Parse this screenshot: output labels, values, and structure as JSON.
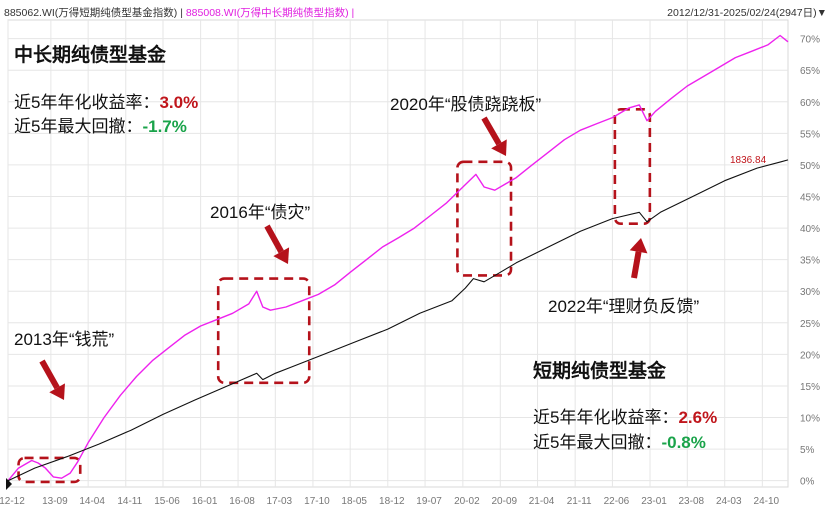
{
  "header": {
    "series_a": "885062.WI(万得短期纯债型基金指数)",
    "separator": " | ",
    "series_b": "885008.WI(万得中长期纯债型指数)",
    "separator_end": " |",
    "date_range": "2012/12/31-2025/02/24(2947日)"
  },
  "colors": {
    "long_term": "#ee22ee",
    "short_term": "#111111",
    "accent_red": "#c0161c",
    "accent_green": "#1aa34a",
    "dashed_box": "#b5121b"
  },
  "labels": {
    "long_title": "中长期纯债型基金",
    "long_return_label": "近5年年化收益率：",
    "long_return_value": "3.0%",
    "long_dd_label": "近5年最大回撤：",
    "long_dd_value": "-1.7%",
    "short_title": "短期纯债型基金",
    "short_return_label": "近5年年化收益率：",
    "short_return_value": "2.6%",
    "short_dd_label": "近5年最大回撤：",
    "short_dd_value": "-0.8%",
    "event_2013": "2013年“钱荒”",
    "event_2016": "2016年“债灾”",
    "event_2020": "2020年“股债跷跷板”",
    "event_2022": "2022年“理财负反馈”"
  },
  "chart_data": {
    "type": "line",
    "ylim": [
      -1,
      72
    ],
    "ytick_values": [
      0,
      5,
      10,
      15,
      20,
      25,
      30,
      35,
      40,
      45,
      50,
      55,
      60,
      65,
      70
    ],
    "yticks": [
      "0%",
      "5%",
      "10%",
      "15%",
      "20%",
      "25%",
      "30%",
      "35%",
      "40%",
      "45%",
      "50%",
      "55%",
      "60%",
      "65%",
      "70%"
    ],
    "xlim": [
      "2012-12-31",
      "2025-02-24"
    ],
    "xticks": [
      "12-12",
      "13-09",
      "14-04",
      "14-11",
      "15-06",
      "16-01",
      "16-08",
      "17-03",
      "17-10",
      "18-05",
      "18-12",
      "19-07",
      "20-02",
      "20-09",
      "21-04",
      "21-11",
      "22-06",
      "23-01",
      "23-08",
      "24-03",
      "24-10"
    ],
    "xtick_dates": [
      "2012-12-31",
      "2013-09-01",
      "2014-04-01",
      "2014-11-01",
      "2015-06-01",
      "2016-01-01",
      "2016-08-01",
      "2017-03-01",
      "2017-10-01",
      "2018-05-01",
      "2018-12-01",
      "2019-07-01",
      "2020-02-01",
      "2020-09-01",
      "2021-04-01",
      "2021-11-01",
      "2022-06-01",
      "2023-01-01",
      "2023-08-01",
      "2024-03-01",
      "2024-10-01"
    ],
    "last_value_label": "1836.84",
    "series": [
      {
        "name": "885008.WI(万得中长期纯债型指数)",
        "x": [
          "2012-12-31",
          "2013-03-01",
          "2013-05-15",
          "2013-06-20",
          "2013-08-01",
          "2013-09-15",
          "2013-11-01",
          "2013-12-20",
          "2014-02-01",
          "2014-04-01",
          "2014-07-01",
          "2014-10-01",
          "2015-01-01",
          "2015-04-01",
          "2015-07-01",
          "2015-10-01",
          "2016-01-01",
          "2016-04-01",
          "2016-07-01",
          "2016-10-01",
          "2016-11-15",
          "2016-12-20",
          "2017-02-01",
          "2017-05-01",
          "2017-08-01",
          "2017-11-01",
          "2018-02-01",
          "2018-05-01",
          "2018-08-01",
          "2018-11-01",
          "2019-02-01",
          "2019-05-01",
          "2019-08-01",
          "2019-11-01",
          "2020-02-01",
          "2020-04-15",
          "2020-06-01",
          "2020-08-01",
          "2020-10-01",
          "2020-12-01",
          "2021-03-01",
          "2021-06-01",
          "2021-09-01",
          "2021-12-01",
          "2022-03-01",
          "2022-06-01",
          "2022-09-01",
          "2022-11-01",
          "2022-12-15",
          "2023-02-01",
          "2023-05-01",
          "2023-08-01",
          "2023-11-01",
          "2024-02-01",
          "2024-05-01",
          "2024-08-01",
          "2024-11-01",
          "2025-01-10",
          "2025-02-24"
        ],
        "y": [
          0.0,
          2.0,
          3.2,
          2.8,
          2.0,
          0.6,
          0.4,
          1.2,
          3.0,
          6.0,
          10.0,
          13.5,
          16.5,
          19.0,
          21.0,
          23.0,
          24.5,
          25.5,
          26.5,
          28.0,
          30.0,
          27.5,
          27.0,
          27.5,
          28.5,
          29.5,
          31.0,
          33.0,
          35.0,
          37.0,
          38.5,
          40.0,
          42.0,
          44.0,
          46.5,
          48.5,
          46.5,
          46.0,
          47.0,
          48.0,
          50.0,
          52.0,
          54.0,
          55.5,
          56.5,
          57.5,
          59.0,
          59.5,
          57.0,
          58.5,
          60.5,
          62.5,
          64.0,
          65.5,
          67.0,
          68.0,
          69.0,
          70.5,
          69.5
        ]
      },
      {
        "name": "885062.WI(万得短期纯债型基金指数)",
        "x": [
          "2012-12-31",
          "2013-06-01",
          "2013-12-01",
          "2014-06-01",
          "2014-12-01",
          "2015-06-01",
          "2015-12-01",
          "2016-06-01",
          "2016-11-15",
          "2016-12-20",
          "2017-03-01",
          "2017-06-01",
          "2017-12-01",
          "2018-06-01",
          "2018-12-01",
          "2019-06-01",
          "2019-12-01",
          "2020-02-15",
          "2020-04-01",
          "2020-06-01",
          "2020-09-01",
          "2020-12-01",
          "2021-06-01",
          "2021-12-01",
          "2022-06-01",
          "2022-11-01",
          "2022-12-15",
          "2023-03-01",
          "2023-09-01",
          "2024-03-01",
          "2024-09-01",
          "2025-01-15",
          "2025-02-24"
        ],
        "y": [
          0.0,
          2.0,
          3.8,
          5.8,
          8.0,
          10.5,
          12.8,
          15.0,
          17.0,
          16.0,
          17.0,
          18.0,
          20.0,
          22.0,
          24.0,
          26.5,
          28.5,
          30.5,
          32.0,
          31.5,
          33.0,
          34.5,
          37.0,
          39.5,
          41.5,
          42.5,
          41.0,
          42.5,
          45.0,
          47.5,
          49.5,
          50.5,
          50.8
        ]
      }
    ]
  }
}
